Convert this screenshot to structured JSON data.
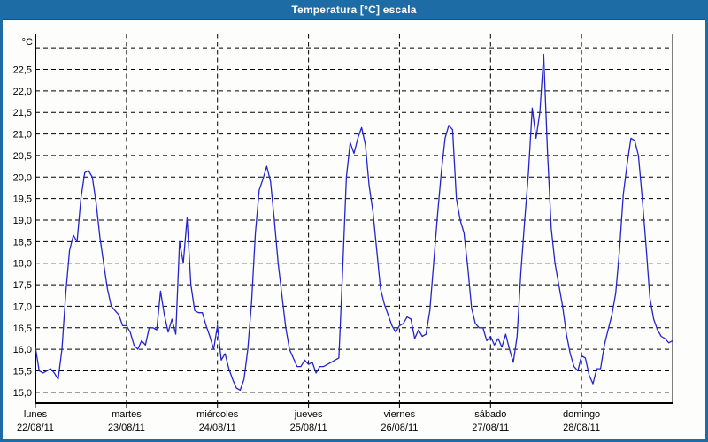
{
  "window": {
    "title": "Temperatura [°C] escala",
    "colors": {
      "title_bar": "#1e6ca6",
      "background": "#fdfdfb",
      "grid": "#000000"
    }
  },
  "chart_data": {
    "type": "line",
    "title": "Temperatura [°C] escala",
    "y_unit_label": "°C",
    "ylim": [
      14.75,
      23.33
    ],
    "y_gridline_step": 0.5,
    "grid": "dashed",
    "legend": "none",
    "yticks": [
      {
        "v": 23.0,
        "label": ""
      },
      {
        "v": 22.5,
        "label": "22,5"
      },
      {
        "v": 22.0,
        "label": "22,0"
      },
      {
        "v": 21.5,
        "label": "21,5"
      },
      {
        "v": 21.0,
        "label": "21,0"
      },
      {
        "v": 20.5,
        "label": "20,5"
      },
      {
        "v": 20.0,
        "label": "20,0"
      },
      {
        "v": 19.5,
        "label": "19,5"
      },
      {
        "v": 19.0,
        "label": "19,0"
      },
      {
        "v": 18.5,
        "label": "18,5"
      },
      {
        "v": 18.0,
        "label": "18,0"
      },
      {
        "v": 17.5,
        "label": "17,5"
      },
      {
        "v": 17.0,
        "label": "17,0"
      },
      {
        "v": 16.5,
        "label": "16,5"
      },
      {
        "v": 16.0,
        "label": "16,0"
      },
      {
        "v": 15.5,
        "label": "15,5"
      },
      {
        "v": 15.0,
        "label": "15,0"
      }
    ],
    "x_days": [
      {
        "name": "lunes",
        "date": "22/08/11"
      },
      {
        "name": "martes",
        "date": "23/08/11"
      },
      {
        "name": "miércoles",
        "date": "24/08/11"
      },
      {
        "name": "jueves",
        "date": "25/08/11"
      },
      {
        "name": "viernes",
        "date": "26/08/11"
      },
      {
        "name": "sábado",
        "date": "27/08/11"
      },
      {
        "name": "domingo",
        "date": "28/08/11"
      }
    ],
    "series": [
      {
        "name": "Temperatura [°C]",
        "color": "#2424cc",
        "sampling": "hourly",
        "values": [
          16.05,
          15.5,
          15.45,
          15.5,
          15.55,
          15.45,
          15.3,
          16.0,
          17.3,
          18.3,
          18.65,
          18.5,
          19.5,
          20.1,
          20.15,
          20.0,
          19.4,
          18.6,
          18.0,
          17.4,
          17.0,
          16.9,
          16.8,
          16.55,
          16.55,
          16.4,
          16.1,
          16.0,
          16.2,
          16.1,
          16.5,
          16.5,
          16.45,
          17.35,
          16.8,
          16.4,
          16.7,
          16.35,
          18.5,
          18.0,
          19.05,
          17.5,
          16.9,
          16.85,
          16.85,
          16.55,
          16.3,
          16.0,
          16.55,
          15.75,
          15.9,
          15.55,
          15.3,
          15.1,
          15.05,
          15.3,
          16.0,
          17.1,
          18.7,
          19.7,
          19.95,
          20.25,
          19.9,
          19.0,
          18.0,
          17.25,
          16.5,
          16.0,
          15.8,
          15.6,
          15.6,
          15.75,
          15.65,
          15.7,
          15.45,
          15.6,
          15.6,
          15.65,
          15.7,
          15.75,
          15.8,
          17.8,
          20.0,
          20.8,
          20.55,
          20.9,
          21.15,
          20.75,
          19.8,
          19.2,
          18.3,
          17.4,
          17.05,
          16.8,
          16.55,
          16.4,
          16.55,
          16.6,
          16.75,
          16.7,
          16.25,
          16.45,
          16.3,
          16.35,
          16.9,
          18.0,
          19.1,
          20.1,
          20.9,
          21.2,
          21.1,
          19.5,
          19.0,
          18.7,
          17.9,
          16.95,
          16.6,
          16.5,
          16.5,
          16.2,
          16.3,
          16.1,
          16.25,
          16.05,
          16.35,
          16.0,
          15.7,
          16.3,
          17.8,
          19.0,
          20.1,
          21.6,
          20.9,
          21.5,
          22.85,
          20.6,
          18.8,
          18.0,
          17.5,
          17.0,
          16.35,
          15.9,
          15.6,
          15.5,
          15.85,
          15.8,
          15.4,
          15.2,
          15.55,
          15.55,
          16.1,
          16.45,
          16.8,
          17.3,
          18.3,
          19.6,
          20.3,
          20.9,
          20.85,
          20.5,
          19.5,
          18.4,
          17.2,
          16.7,
          16.45,
          16.3,
          16.25,
          16.15,
          16.2
        ]
      }
    ]
  }
}
